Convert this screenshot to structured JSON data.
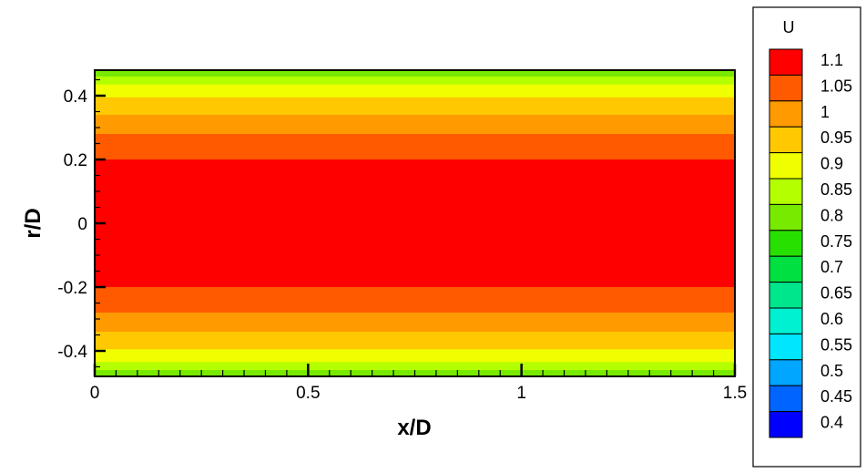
{
  "chart_data": {
    "type": "heatmap",
    "xlabel": "x/D",
    "ylabel": "r/D",
    "xlim": [
      0,
      1.5
    ],
    "ylim": [
      -0.48,
      0.48
    ],
    "x_ticks": [
      0,
      0.5,
      1,
      1.5
    ],
    "x_tick_labels": [
      "0",
      "0.5",
      "1",
      "1.5"
    ],
    "y_ticks": [
      -0.4,
      -0.2,
      0,
      0.2,
      0.4
    ],
    "y_tick_labels": [
      "-0.4",
      "-0.2",
      "0",
      "0.2",
      "0.4"
    ],
    "legend": {
      "title": "U",
      "placement": "right",
      "levels": [
        {
          "label": "1.1",
          "color": "#ff0000"
        },
        {
          "label": "1.05",
          "color": "#ff5a00"
        },
        {
          "label": "1",
          "color": "#ff9a00"
        },
        {
          "label": "0.95",
          "color": "#ffc800"
        },
        {
          "label": "0.9",
          "color": "#f0ff00"
        },
        {
          "label": "0.85",
          "color": "#b4ff00"
        },
        {
          "label": "0.8",
          "color": "#78ea00"
        },
        {
          "label": "0.75",
          "color": "#28e000"
        },
        {
          "label": "0.7",
          "color": "#00e040"
        },
        {
          "label": "0.65",
          "color": "#00e68c"
        },
        {
          "label": "0.6",
          "color": "#00f0d2"
        },
        {
          "label": "0.55",
          "color": "#00e6ff"
        },
        {
          "label": "0.5",
          "color": "#00a6ff"
        },
        {
          "label": "0.45",
          "color": "#0064ff"
        },
        {
          "label": "0.4",
          "color": "#0000ff"
        }
      ]
    },
    "bands": [
      {
        "value": 0.8,
        "r_start": 0.46,
        "r_end": 0.48
      },
      {
        "value": 0.85,
        "r_start": 0.435,
        "r_end": 0.46
      },
      {
        "value": 0.9,
        "r_start": 0.395,
        "r_end": 0.435
      },
      {
        "value": 0.95,
        "r_start": 0.34,
        "r_end": 0.395
      },
      {
        "value": 1,
        "r_start": 0.28,
        "r_end": 0.34
      },
      {
        "value": 1.05,
        "r_start": 0.2,
        "r_end": 0.28
      },
      {
        "value": 1.1,
        "r_start": 0.0,
        "r_end": 0.2
      },
      {
        "value": 1.1,
        "r_start": -0.2,
        "r_end": 0.0
      },
      {
        "value": 1.05,
        "r_start": -0.28,
        "r_end": -0.2
      },
      {
        "value": 1,
        "r_start": -0.34,
        "r_end": -0.28
      },
      {
        "value": 0.95,
        "r_start": -0.395,
        "r_end": -0.34
      },
      {
        "value": 0.9,
        "r_start": -0.435,
        "r_end": -0.395
      },
      {
        "value": 0.85,
        "r_start": -0.46,
        "r_end": -0.435
      },
      {
        "value": 0.8,
        "r_start": -0.48,
        "r_end": -0.46
      }
    ]
  }
}
